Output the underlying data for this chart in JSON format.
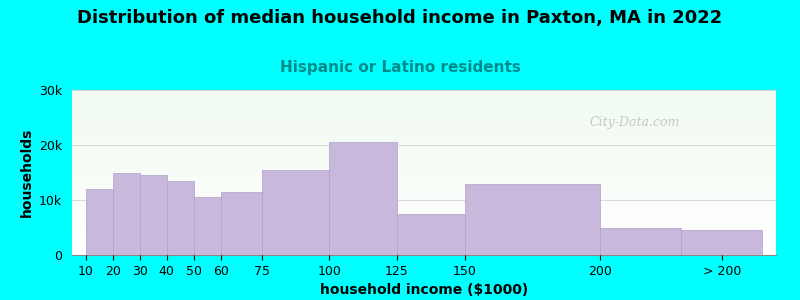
{
  "title": "Distribution of median household income in Paxton, MA in 2022",
  "subtitle": "Hispanic or Latino residents",
  "xlabel": "household income ($1000)",
  "ylabel": "households",
  "background_outer": "#00FFFF",
  "bar_color": "#C8B8DC",
  "bar_edge_color": "#B0A0CC",
  "watermark_text": "City-Data.com",
  "bin_edges": [
    10,
    20,
    30,
    40,
    50,
    60,
    75,
    100,
    125,
    150,
    200,
    230,
    260
  ],
  "values": [
    12000,
    15000,
    14500,
    13500,
    10500,
    11500,
    15500,
    20500,
    7500,
    13000,
    5000,
    4500
  ],
  "xtick_positions": [
    10,
    20,
    30,
    40,
    50,
    60,
    75,
    100,
    125,
    150,
    200,
    245
  ],
  "xtick_labels": [
    "10",
    "20",
    "30",
    "40",
    "50",
    "60",
    "75",
    "100",
    "125",
    "150",
    "200",
    "> 200"
  ],
  "ylim": [
    0,
    30000
  ],
  "xlim": [
    5,
    265
  ],
  "yticks": [
    0,
    10000,
    20000,
    30000
  ],
  "ytick_labels": [
    "0",
    "10k",
    "20k",
    "30k"
  ],
  "title_fontsize": 13,
  "subtitle_fontsize": 11,
  "axis_label_fontsize": 10,
  "tick_fontsize": 9
}
